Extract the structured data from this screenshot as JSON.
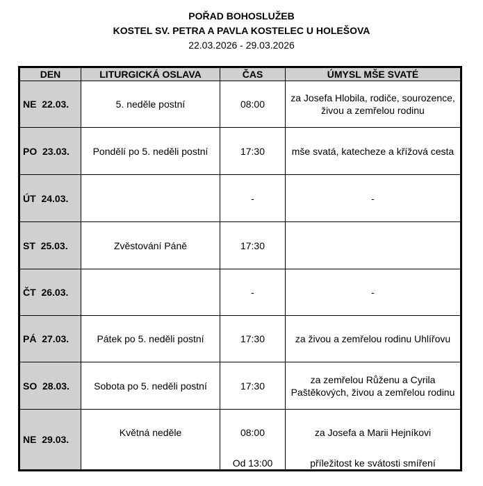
{
  "title": "POŘAD BOHOSLUŽEB",
  "subtitle": "KOSTEL SV. PETRA A PAVLA KOSTELEC U HOLEŠOVA",
  "date_range": "22.03.2026 - 29.03.2026",
  "columns": [
    "DEN",
    "LITURGICKÁ OSLAVA",
    "ČAS",
    "ÚMYSL MŠE SVATÉ"
  ],
  "rows": [
    {
      "day": "NE  22.03.",
      "celebration": "5. neděle postní",
      "time": "08:00",
      "intention": "za Josefa Hlobila, rodiče, sourozence, živou a zemřelou rodinu"
    },
    {
      "day": "PO  23.03.",
      "celebration": "Pondělí po 5. neděli postní",
      "time": "17:30",
      "intention": "mše svatá, katecheze a křížová cesta"
    },
    {
      "day": "ÚT  24.03.",
      "celebration": "",
      "time": "-",
      "intention": "-"
    },
    {
      "day": "ST  25.03.",
      "celebration": "Zvěstování Páně",
      "time": "17:30",
      "intention": ""
    },
    {
      "day": "ČT  26.03.",
      "celebration": "",
      "time": "-",
      "intention": "-"
    },
    {
      "day": "PÁ  27.03.",
      "celebration": "Pátek po 5. neděli postní",
      "time": "17:30",
      "intention": "za živou a zemřelou rodinu Uhlířovu"
    },
    {
      "day": "SO  28.03.",
      "celebration": "Sobota po 5. neděli postní",
      "time": "17:30",
      "intention": "za zemřelou Růženu a Cyrila Paštěkových, živou a zemřelou rodinu"
    }
  ],
  "last_row": {
    "day": "NE  29.03.",
    "celebration": "Květná neděle",
    "time": "08:00",
    "intention": "za Josefa a Marii Hejníkovi",
    "time2": "Od 13:00",
    "intention2": "příležitost ke svátosti smíření"
  }
}
